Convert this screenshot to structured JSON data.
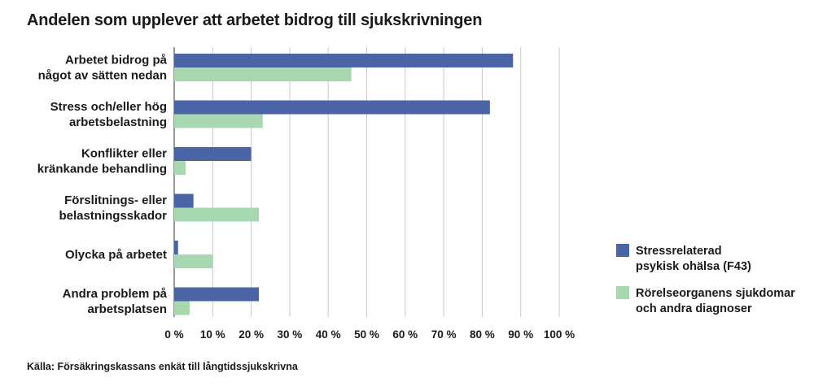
{
  "title": "Andelen som upplever att arbetet bidrog till sjukskrivningen",
  "source": "Källa: Försäkringskassans enkät till långtidssjukskrivna",
  "chart_data": {
    "type": "bar",
    "orientation": "horizontal",
    "title": "Andelen som upplever att arbetet bidrog till sjukskrivningen",
    "categories": [
      [
        "Arbetet bidrog på",
        "något av sätten nedan"
      ],
      [
        "Stress och/eller hög",
        "arbetsbelastning"
      ],
      [
        "Konflikter eller",
        "kränkande behandling"
      ],
      [
        "Förslitnings- eller",
        "belastningsskador"
      ],
      [
        "Olycka på arbetet"
      ],
      [
        "Andra problem på",
        "arbetsplatsen"
      ]
    ],
    "series": [
      {
        "name": "Stressrelaterad psykisk ohälsa (F43)",
        "legend_lines": [
          "Stressrelaterad",
          "psykisk ohälsa (F43)"
        ],
        "color": "#4a64a6",
        "values": [
          88,
          82,
          20,
          5,
          1,
          22
        ]
      },
      {
        "name": "Rörelseorganens sjukdomar och andra diagnoser",
        "legend_lines": [
          "Rörelseorganens sjukdomar",
          "och andra diagnoser"
        ],
        "color": "#a8d8b0",
        "values": [
          46,
          23,
          3,
          22,
          10,
          4
        ]
      }
    ],
    "xlim": [
      0,
      100
    ],
    "xticks": [
      "0 %",
      "10 %",
      "20 %",
      "30 %",
      "40 %",
      "50 %",
      "60 %",
      "70 %",
      "80 %",
      "90 %",
      "100 %"
    ],
    "grid": "vertical",
    "legend_position": "right"
  }
}
